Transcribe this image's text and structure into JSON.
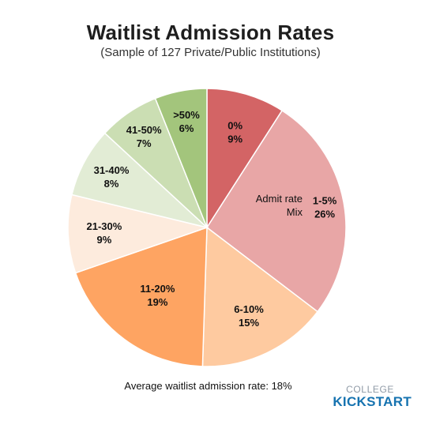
{
  "header": {
    "title": "Waitlist Admission Rates",
    "subtitle": "(Sample of 127 Private/Public Institutions)"
  },
  "chart_data": {
    "type": "pie",
    "title": "Waitlist Admission Rates",
    "subtitle": "(Sample of 127 Private/Public Institutions)",
    "legend_title": "Admit rate Mix",
    "categories": [
      "0%",
      "1-5%",
      "6-10%",
      "11-20%",
      "21-30%",
      "31-40%",
      "41-50%",
      ">50%"
    ],
    "values": [
      9,
      26,
      15,
      19,
      9,
      8,
      7,
      6
    ],
    "value_labels": [
      "9%",
      "26%",
      "15%",
      "19%",
      "9%",
      "8%",
      "7%",
      "6%"
    ],
    "colors": [
      "#d36465",
      "#e8a6a6",
      "#fecaa0",
      "#fea462",
      "#fdebdd",
      "#e2ecd5",
      "#cbdeb3",
      "#a3c57c"
    ],
    "annotation": "Average waitlist admission rate: 18%"
  },
  "legend_label_lines": [
    "Admit rate",
    "Mix"
  ],
  "footer": {
    "note": "Average waitlist admission rate: 18%"
  },
  "logo": {
    "top": "COLLEGE",
    "bottom": "KICKSTART"
  }
}
